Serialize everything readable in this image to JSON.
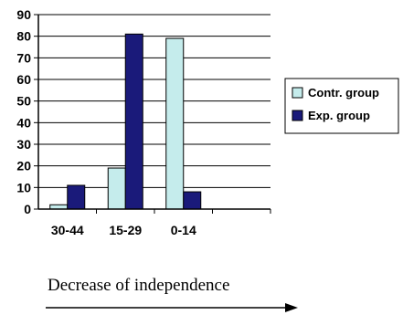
{
  "chart_data": {
    "type": "bar",
    "title": "",
    "xlabel": "",
    "ylabel": "",
    "categories": [
      "30-44",
      "15-29",
      "0-14",
      ""
    ],
    "series": [
      {
        "name": "Contr. group",
        "values": [
          2,
          19,
          79,
          null
        ],
        "color": "#c5ecec"
      },
      {
        "name": "Exp. group",
        "values": [
          11,
          81,
          8,
          null
        ],
        "color": "#1a1a7a"
      }
    ],
    "ylim": [
      0,
      90
    ],
    "yticks": [
      0,
      10,
      20,
      30,
      40,
      50,
      60,
      70,
      80,
      90
    ],
    "grid": true,
    "legend_position": "right"
  },
  "caption": "Decrease of independence"
}
